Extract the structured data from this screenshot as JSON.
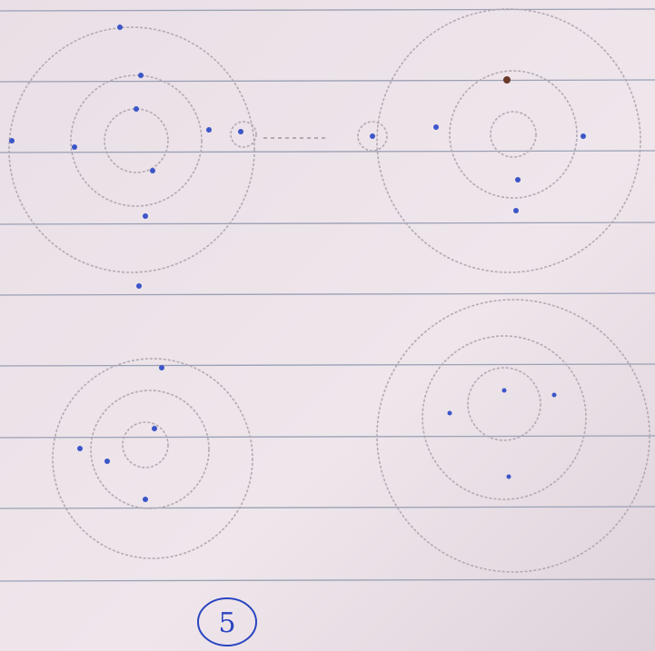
{
  "page_number": "5"
}
